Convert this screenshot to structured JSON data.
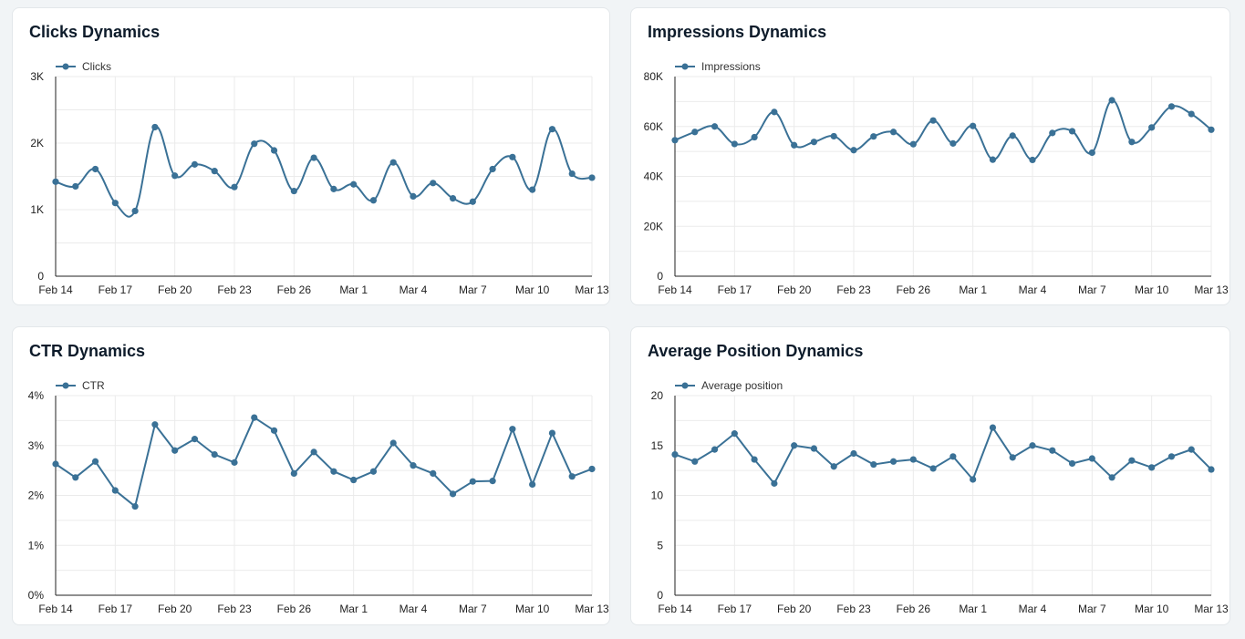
{
  "colors": {
    "line": "#3a7196",
    "grid": "#ebebeb",
    "axis": "#222222"
  },
  "x_ticks": [
    "Feb 14",
    "Feb 17",
    "Feb 20",
    "Feb 23",
    "Feb 26",
    "Mar 1",
    "Mar 4",
    "Mar 7",
    "Mar 10",
    "Mar 13"
  ],
  "chart_data": [
    {
      "type": "line",
      "title": "Clicks Dynamics",
      "legend": "Clicks",
      "legend_position": "top-left",
      "grid": true,
      "smooth": true,
      "x_range": [
        "Feb 14",
        "Mar 13"
      ],
      "ylim": [
        0,
        3000
      ],
      "y_ticks": [
        0,
        1000,
        2000,
        3000
      ],
      "y_tick_labels": [
        "0",
        "1K",
        "2K",
        "3K"
      ],
      "values": [
        1420,
        1350,
        1610,
        1100,
        980,
        2240,
        1510,
        1680,
        1580,
        1340,
        1990,
        1890,
        1280,
        1780,
        1310,
        1380,
        1140,
        1710,
        1200,
        1400,
        1170,
        1120,
        1610,
        1790,
        1300,
        2210,
        1540,
        1480
      ]
    },
    {
      "type": "line",
      "title": "Impressions Dynamics",
      "legend": "Impressions",
      "legend_position": "top-left",
      "grid": true,
      "smooth": true,
      "x_range": [
        "Feb 14",
        "Mar 13"
      ],
      "ylim": [
        0,
        80000
      ],
      "y_ticks": [
        0,
        20000,
        40000,
        60000,
        80000
      ],
      "y_tick_labels": [
        "0",
        "20K",
        "40K",
        "60K",
        "80K"
      ],
      "values": [
        54500,
        57800,
        60000,
        53000,
        55700,
        65800,
        52500,
        53800,
        56100,
        50500,
        56000,
        57800,
        52900,
        62400,
        53200,
        60200,
        46700,
        56300,
        46600,
        57400,
        58100,
        49500,
        70500,
        53800,
        59600,
        68000,
        65000,
        58700
      ]
    },
    {
      "type": "line",
      "title": "CTR Dynamics",
      "legend": "CTR",
      "legend_position": "top-left",
      "grid": true,
      "smooth": false,
      "x_range": [
        "Feb 14",
        "Mar 13"
      ],
      "ylim": [
        0,
        4
      ],
      "y_ticks": [
        0,
        1,
        2,
        3,
        4
      ],
      "y_tick_labels": [
        "0%",
        "1%",
        "2%",
        "3%",
        "4%"
      ],
      "values": [
        2.63,
        2.36,
        2.68,
        2.1,
        1.78,
        3.42,
        2.9,
        3.13,
        2.82,
        2.66,
        3.56,
        3.3,
        2.44,
        2.87,
        2.48,
        2.31,
        2.48,
        3.05,
        2.6,
        2.44,
        2.03,
        2.28,
        2.29,
        3.33,
        2.22,
        3.25,
        2.38,
        2.53
      ]
    },
    {
      "type": "line",
      "title": "Average Position Dynamics",
      "legend": "Average position",
      "legend_position": "top-left",
      "grid": true,
      "smooth": false,
      "x_range": [
        "Feb 14",
        "Mar 13"
      ],
      "ylim": [
        0,
        20
      ],
      "y_ticks": [
        0,
        5,
        10,
        15,
        20
      ],
      "y_tick_labels": [
        "0",
        "5",
        "10",
        "15",
        "20"
      ],
      "values": [
        14.1,
        13.4,
        14.6,
        16.2,
        13.6,
        11.2,
        15.0,
        14.7,
        12.9,
        14.2,
        13.1,
        13.4,
        13.6,
        12.7,
        13.9,
        11.6,
        16.8,
        13.8,
        15.0,
        14.5,
        13.2,
        13.7,
        11.8,
        13.5,
        12.8,
        13.9,
        14.6,
        12.6
      ]
    }
  ]
}
